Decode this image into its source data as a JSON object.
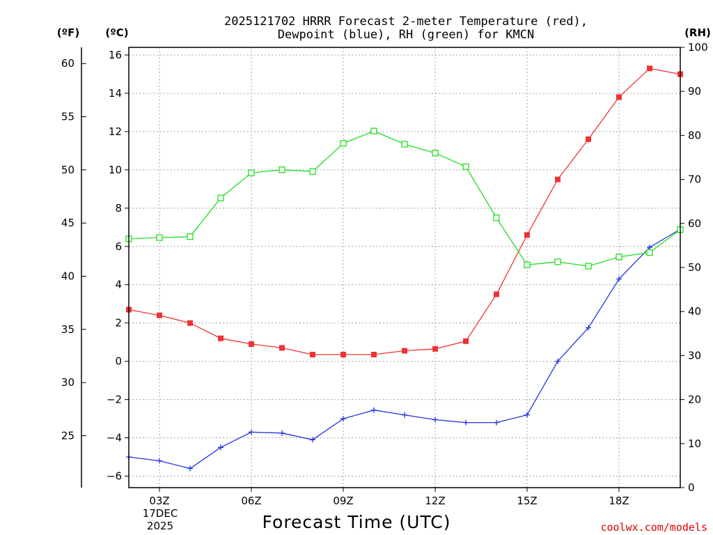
{
  "chart_data": {
    "type": "line",
    "title": "2025121702 HRRR Forecast 2-meter Temperature (red), Dewpoint (blue), RH (green) for KMCN",
    "title_lines": [
      "2025121702 HRRR Forecast 2-meter Temperature (red),",
      "Dewpoint (blue), RH (green) for KMCN"
    ],
    "xlabel": "Forecast Time (UTC)",
    "credit": "coolwx.com/models",
    "units": {
      "fahrenheit": "(ºF)",
      "celsius": "(ºC)",
      "rh": "(RH)"
    },
    "x_hours": [
      2,
      3,
      4,
      5,
      6,
      7,
      8,
      9,
      10,
      11,
      12,
      13,
      14,
      15,
      16,
      17,
      18,
      19,
      20
    ],
    "x_ticks": [
      {
        "hour": 3,
        "label": "03Z"
      },
      {
        "hour": 6,
        "label": "06Z"
      },
      {
        "hour": 9,
        "label": "09Z"
      },
      {
        "hour": 12,
        "label": "12Z"
      },
      {
        "hour": 15,
        "label": "15Z"
      },
      {
        "hour": 18,
        "label": "18Z"
      }
    ],
    "date_label": [
      "17DEC",
      "2025"
    ],
    "xlim": [
      2,
      20
    ],
    "celsius_axis": {
      "lim": [
        -6.6,
        16.4
      ],
      "ticks": [
        -6,
        -4,
        -2,
        0,
        2,
        4,
        6,
        8,
        10,
        12,
        14,
        16
      ]
    },
    "fahrenheit_axis": {
      "ticks": [
        25,
        30,
        35,
        40,
        45,
        50,
        55,
        60
      ]
    },
    "rh_axis": {
      "lim": [
        0,
        100
      ],
      "ticks": [
        0,
        10,
        20,
        30,
        40,
        50,
        60,
        70,
        80,
        90,
        100
      ]
    },
    "series": [
      {
        "name": "Temperature",
        "color": "#ee3333",
        "axis": "celsius",
        "marker": "filled-square",
        "values": [
          2.7,
          2.4,
          2.0,
          1.2,
          0.9,
          0.7,
          0.35,
          0.35,
          0.35,
          0.55,
          0.65,
          1.05,
          3.5,
          6.6,
          9.5,
          11.6,
          13.8,
          15.3,
          15.0
        ]
      },
      {
        "name": "Dewpoint",
        "color": "#2233dd",
        "axis": "celsius",
        "marker": "plus",
        "values": [
          -5.0,
          -5.2,
          -5.6,
          -4.5,
          -3.7,
          -3.75,
          -4.1,
          -3.0,
          -2.55,
          -2.8,
          -3.05,
          -3.2,
          -3.2,
          -2.8,
          0.0,
          1.75,
          4.3,
          5.95,
          6.9
        ]
      },
      {
        "name": "RH",
        "color": "#22dd22",
        "axis": "rh",
        "marker": "open-square",
        "values": [
          56.5,
          56.8,
          57.0,
          65.8,
          71.5,
          72.2,
          71.8,
          78.2,
          81.0,
          78.0,
          76.0,
          72.9,
          61.3,
          50.6,
          51.3,
          50.3,
          52.4,
          53.4,
          58.6
        ]
      }
    ]
  }
}
